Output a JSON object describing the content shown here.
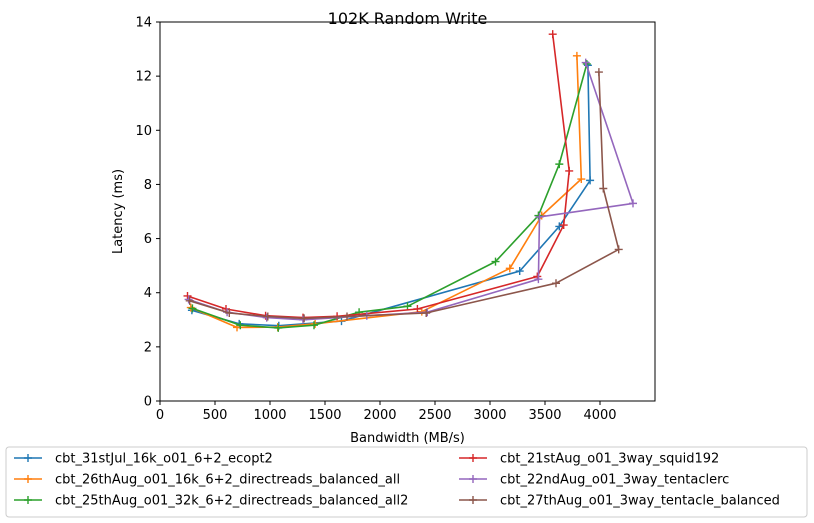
{
  "chart_data": {
    "type": "line",
    "title": "102K  Random Write",
    "xlabel": "Bandwidth (MB/s)",
    "ylabel": "Latency (ms)",
    "xlim": [
      0,
      4500
    ],
    "ylim": [
      0,
      14
    ],
    "xticks": [
      "0",
      "500",
      "1000",
      "1500",
      "2000",
      "2500",
      "3000",
      "3500",
      "4000"
    ],
    "yticks": [
      "0",
      "2",
      "4",
      "6",
      "8",
      "10",
      "12",
      "14"
    ],
    "grid": false,
    "legend_position": "below",
    "series": [
      {
        "name": "cbt_31stJul_16k_o01_6+2_ecopt2",
        "color": "#1f77b4",
        "points": [
          [
            290,
            3.35
          ],
          [
            720,
            2.85
          ],
          [
            1080,
            2.78
          ],
          [
            1650,
            2.95
          ],
          [
            3270,
            4.8
          ],
          [
            3630,
            6.45
          ],
          [
            3910,
            8.15
          ],
          [
            3890,
            12.4
          ]
        ]
      },
      {
        "name": "cbt_26thAug_o01_16k_6+2_directreads_balanced_all",
        "color": "#ff7f0e",
        "points": [
          [
            280,
            3.45
          ],
          [
            700,
            2.72
          ],
          [
            1070,
            2.73
          ],
          [
            1410,
            2.85
          ],
          [
            2380,
            3.3
          ],
          [
            3180,
            4.9
          ],
          [
            3470,
            6.85
          ],
          [
            3830,
            8.2
          ],
          [
            3790,
            12.75
          ]
        ]
      },
      {
        "name": "cbt_25thAug_o01_32k_6+2_directreads_balanced_all2",
        "color": "#2ca02c",
        "points": [
          [
            295,
            3.42
          ],
          [
            730,
            2.8
          ],
          [
            1075,
            2.7
          ],
          [
            1400,
            2.8
          ],
          [
            1810,
            3.28
          ],
          [
            2250,
            3.5
          ],
          [
            3050,
            5.15
          ],
          [
            3440,
            6.85
          ],
          [
            3630,
            8.75
          ],
          [
            3880,
            12.45
          ]
        ]
      },
      {
        "name": "cbt_21stAug_o01_3way_squid192",
        "color": "#d62728",
        "points": [
          [
            250,
            3.88
          ],
          [
            600,
            3.4
          ],
          [
            960,
            3.15
          ],
          [
            1300,
            3.08
          ],
          [
            1610,
            3.13
          ],
          [
            2340,
            3.4
          ],
          [
            3430,
            4.6
          ],
          [
            3670,
            6.5
          ],
          [
            3720,
            8.5
          ],
          [
            3570,
            13.55
          ]
        ]
      },
      {
        "name": "cbt_22ndAug_o01_3way_tentaclerc",
        "color": "#9467bd",
        "points": [
          [
            260,
            3.75
          ],
          [
            610,
            3.28
          ],
          [
            970,
            3.08
          ],
          [
            1300,
            3.0
          ],
          [
            1880,
            3.15
          ],
          [
            2430,
            3.28
          ],
          [
            3440,
            4.5
          ],
          [
            3450,
            6.8
          ],
          [
            4300,
            7.3
          ],
          [
            3870,
            12.5
          ]
        ]
      },
      {
        "name": "cbt_27thAug_o01_3way_tentacle_balanced",
        "color": "#8c564b",
        "points": [
          [
            270,
            3.7
          ],
          [
            630,
            3.25
          ],
          [
            980,
            3.12
          ],
          [
            1310,
            3.05
          ],
          [
            1700,
            3.12
          ],
          [
            2420,
            3.25
          ],
          [
            3600,
            4.35
          ],
          [
            4170,
            5.6
          ],
          [
            4030,
            7.85
          ],
          [
            3990,
            12.15
          ]
        ]
      }
    ]
  }
}
